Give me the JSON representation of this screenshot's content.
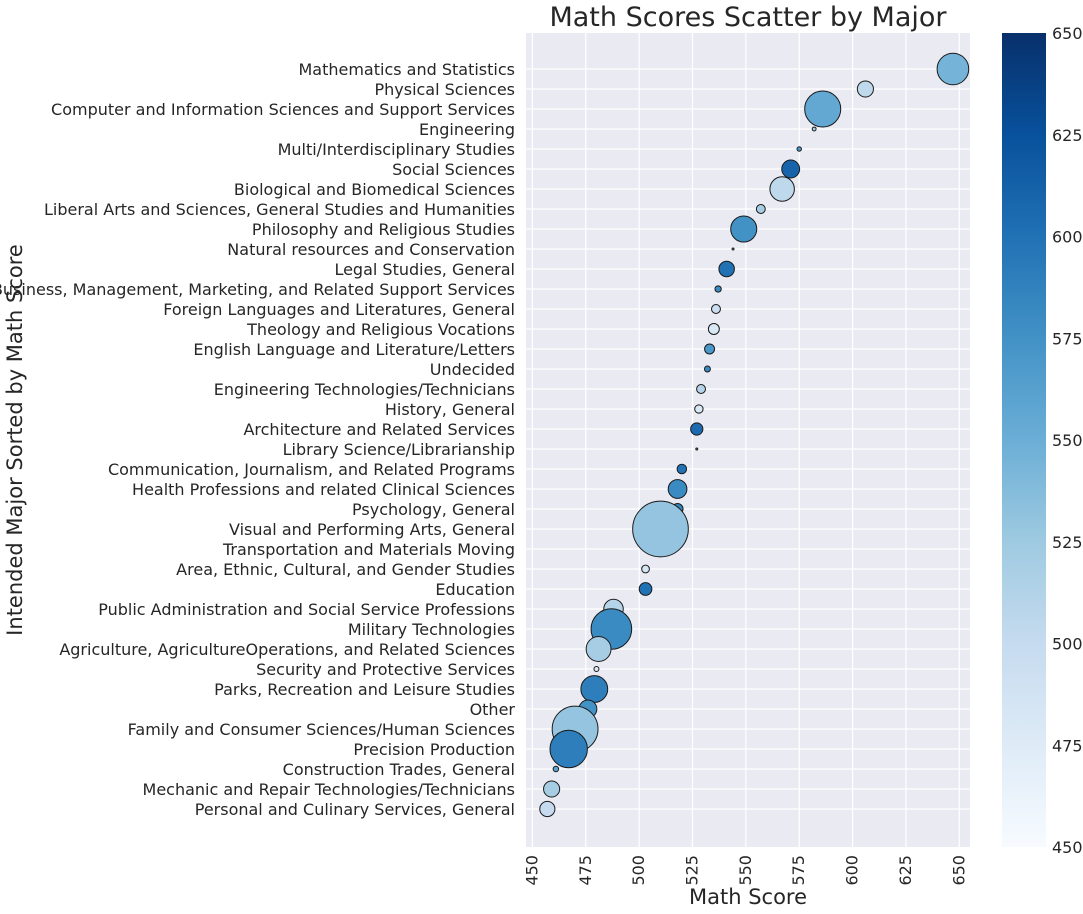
{
  "chart_data": {
    "type": "scatter",
    "title": "Math Scores Scatter by Major",
    "xlabel": "Math Score",
    "ylabel": "Intended Major Sorted by Math Score",
    "xlim": [
      447,
      655
    ],
    "xticks": [
      450,
      475,
      500,
      525,
      550,
      575,
      600,
      625,
      650
    ],
    "grid": true,
    "colorbar": {
      "colormap": "Blues",
      "range": [
        450,
        650
      ],
      "ticks": [
        450,
        475,
        500,
        525,
        550,
        575,
        600,
        625,
        650
      ]
    },
    "points": [
      {
        "category": "Mathematics and Statistics",
        "x": 647,
        "color_value": 545,
        "size": 1000
      },
      {
        "category": "Physical Sciences",
        "x": 606,
        "color_value": 505,
        "size": 260
      },
      {
        "category": "Computer and Information Sciences and Support Services",
        "x": 586,
        "color_value": 555,
        "size": 1300
      },
      {
        "category": "Engineering",
        "x": 582,
        "color_value": 520,
        "size": 15
      },
      {
        "category": "Multi/Interdisciplinary Studies",
        "x": 575,
        "color_value": 570,
        "size": 20
      },
      {
        "category": "Social Sciences",
        "x": 571,
        "color_value": 610,
        "size": 320
      },
      {
        "category": "Biological and Biomedical Sciences",
        "x": 567,
        "color_value": 505,
        "size": 600
      },
      {
        "category": "Liberal Arts and Sciences, General Studies and Humanities",
        "x": 557,
        "color_value": 520,
        "size": 80
      },
      {
        "category": "Philosophy and Religious Studies",
        "x": 549,
        "color_value": 575,
        "size": 680
      },
      {
        "category": "Natural resources and Conservation",
        "x": 544,
        "color_value": 540,
        "size": 4
      },
      {
        "category": "Legal Studies, General",
        "x": 541,
        "color_value": 600,
        "size": 240
      },
      {
        "category": "Business, Management, Marketing, and Related Support Services",
        "x": 537,
        "color_value": 580,
        "size": 40
      },
      {
        "category": "Foreign Languages and Literatures, General",
        "x": 536,
        "color_value": 495,
        "size": 80
      },
      {
        "category": "Theology and Religious Vocations",
        "x": 535,
        "color_value": 480,
        "size": 120
      },
      {
        "category": "English Language and Literature/Letters",
        "x": 533,
        "color_value": 570,
        "size": 100
      },
      {
        "category": "Undecided",
        "x": 532,
        "color_value": 580,
        "size": 35
      },
      {
        "category": "Engineering Technologies/Technicians",
        "x": 529,
        "color_value": 510,
        "size": 80
      },
      {
        "category": "History, General",
        "x": 528,
        "color_value": 480,
        "size": 70
      },
      {
        "category": "Architecture and Related Services",
        "x": 527,
        "color_value": 605,
        "size": 150
      },
      {
        "category": "Library Science/Librarianship",
        "x": 527,
        "color_value": 560,
        "size": 4
      },
      {
        "category": "Communication, Journalism, and Related Programs",
        "x": 520,
        "color_value": 600,
        "size": 90
      },
      {
        "category": "Health Professions and related Clinical Sciences",
        "x": 518,
        "color_value": 580,
        "size": 350
      },
      {
        "category": "Psychology, General",
        "x": 518,
        "color_value": 585,
        "size": 120
      },
      {
        "category": "Visual and Performing Arts, General",
        "x": 510,
        "color_value": 530,
        "size": 3100
      },
      {
        "category": "Transportation and Materials Moving",
        "x": 510,
        "color_value": 540,
        "size": 0
      },
      {
        "category": "Area, Ethnic, Cultural, and Gender Studies",
        "x": 503,
        "color_value": 485,
        "size": 60
      },
      {
        "category": "Education",
        "x": 503,
        "color_value": 600,
        "size": 160
      },
      {
        "category": "Public Administration and Social Service Professions",
        "x": 488,
        "color_value": 510,
        "size": 380
      },
      {
        "category": "Military Technologies",
        "x": 487,
        "color_value": 580,
        "size": 1650
      },
      {
        "category": "Agriculture, AgricultureOperations, and Related Sciences",
        "x": 481,
        "color_value": 520,
        "size": 620
      },
      {
        "category": "Security and Protective Services",
        "x": 480,
        "color_value": 480,
        "size": 25
      },
      {
        "category": "Parks, Recreation and Leisure Studies",
        "x": 479,
        "color_value": 590,
        "size": 720
      },
      {
        "category": "Other",
        "x": 476,
        "color_value": 575,
        "size": 320
      },
      {
        "category": "Family and Consumer Sciences/Human Sciences",
        "x": 470,
        "color_value": 530,
        "size": 2100
      },
      {
        "category": "Precision Production",
        "x": 467,
        "color_value": 590,
        "size": 1400
      },
      {
        "category": "Construction Trades, General",
        "x": 461,
        "color_value": 560,
        "size": 30
      },
      {
        "category": "Mechanic and Repair Technologies/Technicians",
        "x": 459,
        "color_value": 520,
        "size": 260
      },
      {
        "category": "Personal and Culinary Services, General",
        "x": 457,
        "color_value": 500,
        "size": 230
      }
    ]
  }
}
